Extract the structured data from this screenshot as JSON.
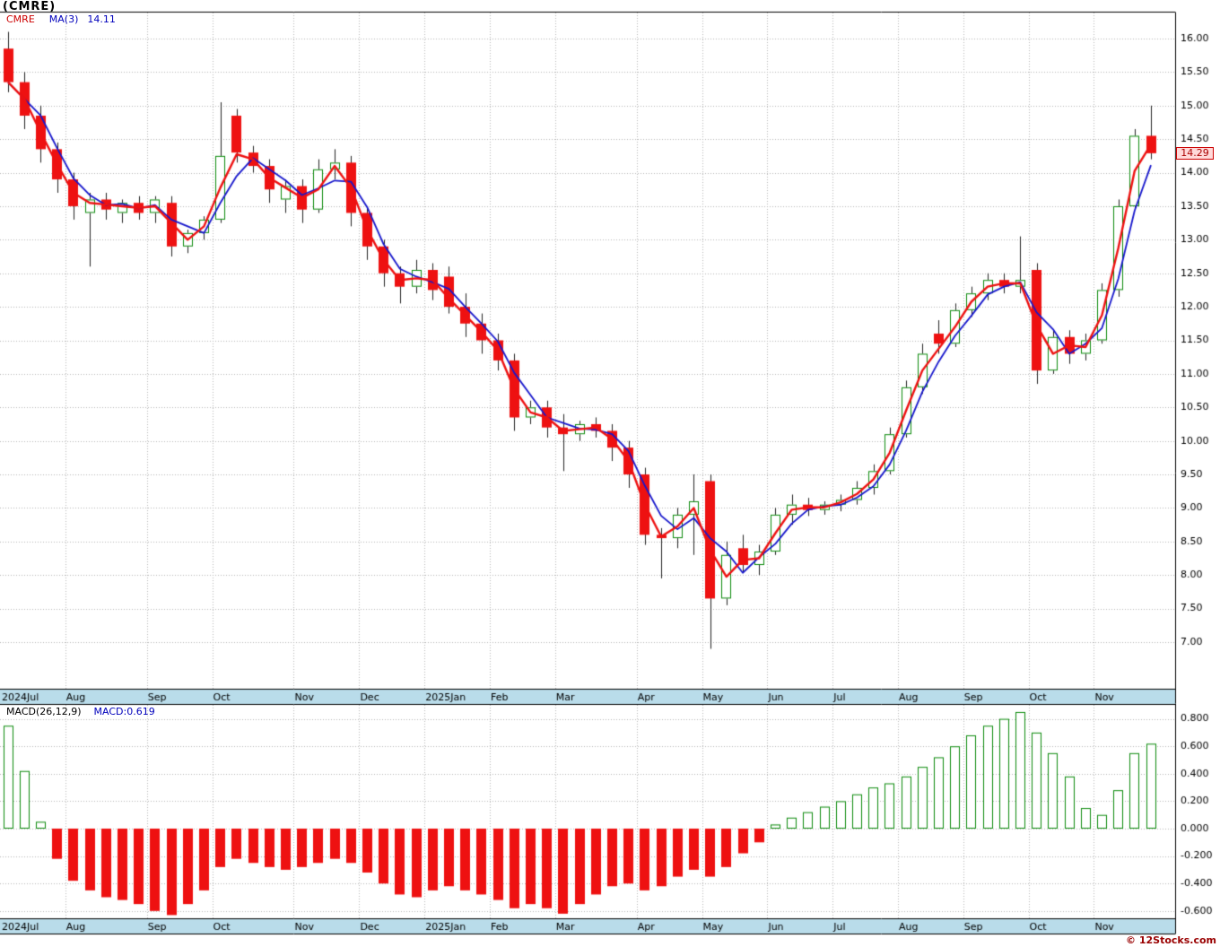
{
  "header": {
    "title": "(CMRE)",
    "symbol": "CMRE",
    "ma_label": "MA(3)",
    "ma_value": "14.11"
  },
  "macd_header": {
    "label": "MACD(26,12,9)",
    "value_label": "MACD:0.619"
  },
  "price_tag": "14.29",
  "footer": {
    "watermark": "© 12Stocks.com"
  },
  "colors": {
    "up": "#0b8a0b",
    "down": "#ee1111",
    "wick": "#222222",
    "price_line": "#ee1111",
    "ma_line": "#1616cc",
    "grid": "#b5b5b5",
    "month_strip_bg": "#b9dcea",
    "axis_text": "#000000",
    "macd_pos": "#0b8a0b",
    "macd_neg": "#ee1111",
    "border": "#000000",
    "tag_bg": "#ffd9d9",
    "tag_border": "#cc0000",
    "watermark": "#990000"
  },
  "chart_data": [
    {
      "type": "candlestick",
      "title": "CMRE weekly price with MA(3)",
      "symbol": "CMRE",
      "last_price": 14.29,
      "ma3_last": 14.11,
      "ylim": [
        7.0,
        16.0
      ],
      "y_ticks": [
        16.0,
        15.5,
        15.0,
        14.5,
        14.0,
        13.5,
        13.0,
        12.5,
        12.0,
        11.5,
        11.0,
        10.5,
        10.0,
        9.5,
        9.0,
        8.5,
        8.0,
        7.5,
        7.0
      ],
      "legend_position": "top-left",
      "grid": true,
      "months": [
        {
          "label": "2024Jul",
          "start": 0
        },
        {
          "label": "Aug",
          "start": 4
        },
        {
          "label": "Sep",
          "start": 9
        },
        {
          "label": "Oct",
          "start": 13
        },
        {
          "label": "Nov",
          "start": 18
        },
        {
          "label": "Dec",
          "start": 22
        },
        {
          "label": "2025Jan",
          "start": 26
        },
        {
          "label": "Feb",
          "start": 30
        },
        {
          "label": "Mar",
          "start": 34
        },
        {
          "label": "Apr",
          "start": 39
        },
        {
          "label": "May",
          "start": 43
        },
        {
          "label": "Jun",
          "start": 47
        },
        {
          "label": "Jul",
          "start": 51
        },
        {
          "label": "Aug",
          "start": 55
        },
        {
          "label": "Sep",
          "start": 59
        },
        {
          "label": "Oct",
          "start": 63
        },
        {
          "label": "Nov",
          "start": 67
        }
      ],
      "candles": [
        [
          15.85,
          16.1,
          15.2,
          15.35
        ],
        [
          15.35,
          15.5,
          14.65,
          14.85
        ],
        [
          14.85,
          15.0,
          14.15,
          14.35
        ],
        [
          14.35,
          14.45,
          13.7,
          13.9
        ],
        [
          13.9,
          14.0,
          13.3,
          13.5
        ],
        [
          13.4,
          13.7,
          12.6,
          13.6
        ],
        [
          13.6,
          13.7,
          13.3,
          13.45
        ],
        [
          13.4,
          13.6,
          13.25,
          13.55
        ],
        [
          13.55,
          13.65,
          13.3,
          13.4
        ],
        [
          13.4,
          13.65,
          13.25,
          13.6
        ],
        [
          13.55,
          13.65,
          12.75,
          12.9
        ],
        [
          12.9,
          13.15,
          12.8,
          13.1
        ],
        [
          13.1,
          13.35,
          13.0,
          13.3
        ],
        [
          13.3,
          15.05,
          13.25,
          14.25
        ],
        [
          14.85,
          14.95,
          14.15,
          14.3
        ],
        [
          14.3,
          14.4,
          14.0,
          14.1
        ],
        [
          14.1,
          14.2,
          13.55,
          13.75
        ],
        [
          13.6,
          13.9,
          13.4,
          13.8
        ],
        [
          13.8,
          13.9,
          13.25,
          13.45
        ],
        [
          13.45,
          14.2,
          13.4,
          14.05
        ],
        [
          14.05,
          14.35,
          13.9,
          14.15
        ],
        [
          14.15,
          14.25,
          13.2,
          13.4
        ],
        [
          13.4,
          13.5,
          12.7,
          12.9
        ],
        [
          12.9,
          13.0,
          12.3,
          12.5
        ],
        [
          12.5,
          12.6,
          12.05,
          12.3
        ],
        [
          12.3,
          12.7,
          12.2,
          12.55
        ],
        [
          12.55,
          12.65,
          12.1,
          12.25
        ],
        [
          12.45,
          12.6,
          11.9,
          12.0
        ],
        [
          12.0,
          12.2,
          11.55,
          11.75
        ],
        [
          11.75,
          11.9,
          11.3,
          11.5
        ],
        [
          11.5,
          11.6,
          11.05,
          11.2
        ],
        [
          11.2,
          11.3,
          10.15,
          10.35
        ],
        [
          10.35,
          10.6,
          10.25,
          10.5
        ],
        [
          10.5,
          10.6,
          10.05,
          10.2
        ],
        [
          10.2,
          10.4,
          9.55,
          10.1
        ],
        [
          10.1,
          10.3,
          10.0,
          10.25
        ],
        [
          10.25,
          10.35,
          10.05,
          10.15
        ],
        [
          10.15,
          10.25,
          9.7,
          9.9
        ],
        [
          9.9,
          10.0,
          9.3,
          9.5
        ],
        [
          9.5,
          9.6,
          8.45,
          8.6
        ],
        [
          8.6,
          8.7,
          7.95,
          8.55
        ],
        [
          8.55,
          9.0,
          8.4,
          8.9
        ],
        [
          8.9,
          9.5,
          8.3,
          9.1
        ],
        [
          9.4,
          9.5,
          6.9,
          7.65
        ],
        [
          7.65,
          8.5,
          7.55,
          8.3
        ],
        [
          8.4,
          8.6,
          8.05,
          8.15
        ],
        [
          8.15,
          8.45,
          8.0,
          8.35
        ],
        [
          8.35,
          9.0,
          8.3,
          8.9
        ],
        [
          8.9,
          9.2,
          8.75,
          9.05
        ],
        [
          9.05,
          9.15,
          8.88,
          8.97
        ],
        [
          8.97,
          9.1,
          8.9,
          9.05
        ],
        [
          9.05,
          9.2,
          8.95,
          9.12
        ],
        [
          9.12,
          9.4,
          9.05,
          9.3
        ],
        [
          9.3,
          9.65,
          9.2,
          9.55
        ],
        [
          9.55,
          10.2,
          9.5,
          10.1
        ],
        [
          10.1,
          10.9,
          10.05,
          10.8
        ],
        [
          10.8,
          11.45,
          10.7,
          11.3
        ],
        [
          11.6,
          11.8,
          11.3,
          11.45
        ],
        [
          11.45,
          12.05,
          11.4,
          11.95
        ],
        [
          11.95,
          12.3,
          11.85,
          12.2
        ],
        [
          12.2,
          12.5,
          12.1,
          12.4
        ],
        [
          12.4,
          12.5,
          12.2,
          12.3
        ],
        [
          12.3,
          13.05,
          12.2,
          12.4
        ],
        [
          12.55,
          12.65,
          10.85,
          11.05
        ],
        [
          11.05,
          11.65,
          11.0,
          11.55
        ],
        [
          11.55,
          11.65,
          11.15,
          11.3
        ],
        [
          11.3,
          11.6,
          11.2,
          11.5
        ],
        [
          11.5,
          12.35,
          11.45,
          12.25
        ],
        [
          12.25,
          13.6,
          12.15,
          13.5
        ],
        [
          13.5,
          14.65,
          13.45,
          14.55
        ],
        [
          14.55,
          15.0,
          14.2,
          14.29
        ]
      ]
    },
    {
      "type": "bar",
      "title": "MACD(26,12,9)",
      "last_value": 0.619,
      "ylim": [
        -0.72,
        0.92
      ],
      "y_ticks": [
        0.8,
        0.6,
        0.4,
        0.2,
        0.0,
        -0.2,
        -0.4,
        -0.6
      ],
      "grid": true,
      "values": [
        0.75,
        0.42,
        0.05,
        -0.22,
        -0.38,
        -0.45,
        -0.5,
        -0.52,
        -0.55,
        -0.6,
        -0.63,
        -0.55,
        -0.45,
        -0.28,
        -0.22,
        -0.25,
        -0.28,
        -0.3,
        -0.28,
        -0.25,
        -0.22,
        -0.25,
        -0.32,
        -0.4,
        -0.48,
        -0.5,
        -0.45,
        -0.42,
        -0.45,
        -0.48,
        -0.52,
        -0.58,
        -0.55,
        -0.58,
        -0.62,
        -0.55,
        -0.48,
        -0.42,
        -0.4,
        -0.45,
        -0.42,
        -0.35,
        -0.3,
        -0.35,
        -0.28,
        -0.18,
        -0.1,
        0.03,
        0.08,
        0.12,
        0.16,
        0.2,
        0.25,
        0.3,
        0.33,
        0.38,
        0.45,
        0.52,
        0.6,
        0.68,
        0.75,
        0.8,
        0.85,
        0.7,
        0.55,
        0.38,
        0.15,
        0.1,
        0.28,
        0.55,
        0.619
      ]
    }
  ]
}
